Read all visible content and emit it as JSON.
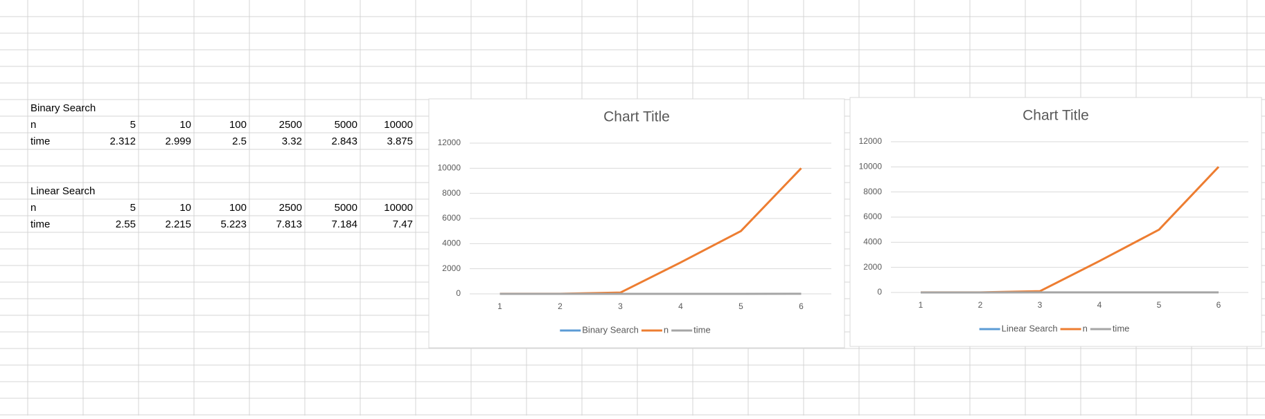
{
  "sheet": {
    "tables": [
      {
        "title": "Binary Search",
        "rows": [
          [
            "n",
            5,
            10,
            100,
            2500,
            5000,
            10000
          ],
          [
            "time",
            2.312,
            2.999,
            2.5,
            3.32,
            2.843,
            3.875
          ]
        ]
      },
      {
        "title": "Linear Search",
        "rows": [
          [
            "n",
            5,
            10,
            100,
            2500,
            5000,
            10000
          ],
          [
            "time",
            2.55,
            2.215,
            5.223,
            7.813,
            7.184,
            7.47
          ]
        ]
      }
    ]
  },
  "chart_data": [
    {
      "type": "line",
      "title": "Chart Title",
      "categories": [
        1,
        2,
        3,
        4,
        5,
        6
      ],
      "series": [
        {
          "name": "Binary Search",
          "color": "#5b9bd5",
          "values": [
            null,
            null,
            null,
            null,
            null,
            null
          ]
        },
        {
          "name": "n",
          "color": "#ed7d31",
          "values": [
            5,
            10,
            100,
            2500,
            5000,
            10000
          ]
        },
        {
          "name": "time",
          "color": "#a5a5a5",
          "values": [
            2.312,
            2.999,
            2.5,
            3.32,
            2.843,
            3.875
          ]
        }
      ],
      "ylim": [
        0,
        12000
      ],
      "yticks": [
        0,
        2000,
        4000,
        6000,
        8000,
        10000,
        12000
      ],
      "grid": true,
      "legend": "bottom"
    },
    {
      "type": "line",
      "title": "Chart Title",
      "categories": [
        1,
        2,
        3,
        4,
        5,
        6
      ],
      "series": [
        {
          "name": "Linear Search",
          "color": "#5b9bd5",
          "values": [
            null,
            null,
            null,
            null,
            null,
            null
          ]
        },
        {
          "name": "n",
          "color": "#ed7d31",
          "values": [
            5,
            10,
            100,
            2500,
            5000,
            10000
          ]
        },
        {
          "name": "time",
          "color": "#a5a5a5",
          "values": [
            2.55,
            2.215,
            5.223,
            7.813,
            7.184,
            7.47
          ]
        }
      ],
      "ylim": [
        0,
        12000
      ],
      "yticks": [
        0,
        2000,
        4000,
        6000,
        8000,
        10000,
        12000
      ],
      "grid": true,
      "legend": "bottom"
    }
  ]
}
